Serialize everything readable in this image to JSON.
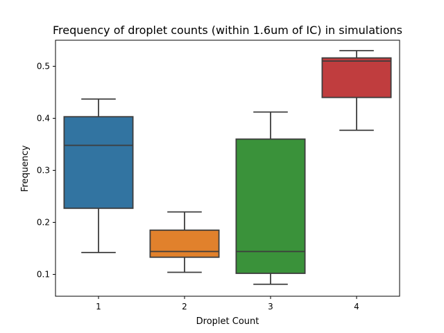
{
  "chart_data": {
    "type": "box",
    "title": "Frequency of droplet counts (within 1.6um of IC) in simulations",
    "xlabel": "Droplet Count",
    "ylabel": "Frequency",
    "ylim": [
      0.058,
      0.55
    ],
    "yticks": [
      0.1,
      0.2,
      0.3,
      0.4,
      0.5
    ],
    "yticks_labels": [
      "0.1",
      "0.2",
      "0.3",
      "0.4",
      "0.5"
    ],
    "grid": false,
    "categories": [
      "1",
      "2",
      "3",
      "4"
    ],
    "boxes": [
      {
        "category": "1",
        "whisker_low": 0.142,
        "q1": 0.227,
        "median": 0.348,
        "q3": 0.403,
        "whisker_high": 0.437,
        "color": "#3274a1"
      },
      {
        "category": "2",
        "whisker_low": 0.104,
        "q1": 0.133,
        "median": 0.144,
        "q3": 0.185,
        "whisker_high": 0.22,
        "color": "#e1812c"
      },
      {
        "category": "3",
        "whisker_low": 0.081,
        "q1": 0.102,
        "median": 0.144,
        "q3": 0.36,
        "whisker_high": 0.412,
        "color": "#3a923a"
      },
      {
        "category": "4",
        "whisker_low": 0.377,
        "q1": 0.44,
        "median": 0.51,
        "q3": 0.516,
        "whisker_high": 0.53,
        "color": "#c03d3e"
      }
    ]
  }
}
